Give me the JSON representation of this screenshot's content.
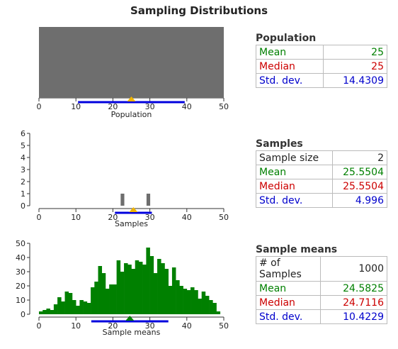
{
  "title": "Sampling Distributions",
  "colors": {
    "population_fill": "#6e6e6e",
    "samples_bar": "#6e6e6e",
    "means_bar": "#008000",
    "mean_color": "#008000",
    "median_color": "#cc0000",
    "sd_color": "#0000cc",
    "mean_marker_pop": "#f0b400",
    "mean_marker_means": "#008000"
  },
  "population": {
    "heading": "Population",
    "rows": [
      {
        "label": "Mean",
        "value": "25"
      },
      {
        "label": "Median",
        "value": "25"
      },
      {
        "label": "Std. dev.",
        "value": "14.4309"
      }
    ],
    "chart": {
      "xlabel": "Population",
      "xticks": [
        "0",
        "10",
        "20",
        "30",
        "40",
        "50"
      ],
      "xlim": [
        0,
        50
      ],
      "distribution": "uniform",
      "range": [
        0,
        50
      ],
      "mean": 25,
      "sd": 14.4309
    }
  },
  "samples": {
    "heading": "Samples",
    "rows": [
      {
        "label": "Sample size",
        "value": "2"
      },
      {
        "label": "Mean",
        "value": "25.5504"
      },
      {
        "label": "Median",
        "value": "25.5504"
      },
      {
        "label": "Std. dev.",
        "value": "4.996"
      }
    ],
    "chart": {
      "xlabel": "Samples",
      "xticks": [
        "0",
        "10",
        "20",
        "30",
        "40",
        "50"
      ],
      "yticks": [
        "0",
        "1",
        "2",
        "3",
        "4",
        "5",
        "6"
      ],
      "xlim": [
        0,
        50
      ],
      "ylim": [
        0,
        6
      ],
      "x": [
        22,
        29
      ],
      "y": [
        1,
        1
      ],
      "mean": 25.5504,
      "sd": 4.996
    }
  },
  "means": {
    "heading": "Sample means",
    "rows": [
      {
        "label": "# of Samples",
        "value": "1000"
      },
      {
        "label": "Mean",
        "value": "24.5825"
      },
      {
        "label": "Median",
        "value": "24.7116"
      },
      {
        "label": "Std. dev.",
        "value": "10.4229"
      }
    ],
    "chart": {
      "xlabel": "Sample means",
      "xticks": [
        "0",
        "10",
        "20",
        "30",
        "40",
        "50"
      ],
      "yticks": [
        "0",
        "10",
        "20",
        "30",
        "40",
        "50"
      ],
      "xlim": [
        0,
        50
      ],
      "ylim": [
        0,
        50
      ],
      "mean": 24.5825,
      "sd": 10.4229
    }
  },
  "chart_data": [
    {
      "type": "bar",
      "xlabel": "Sample means",
      "xlim": [
        0,
        50
      ],
      "ylim": [
        0,
        50
      ],
      "bin_width": 1,
      "x": [
        0,
        1,
        2,
        3,
        4,
        5,
        6,
        7,
        8,
        9,
        10,
        11,
        12,
        13,
        14,
        15,
        16,
        17,
        18,
        19,
        20,
        21,
        22,
        23,
        24,
        25,
        26,
        27,
        28,
        29,
        30,
        31,
        32,
        33,
        34,
        35,
        36,
        37,
        38,
        39,
        40,
        41,
        42,
        43,
        44,
        45,
        46,
        47,
        48,
        49
      ],
      "values": [
        2,
        3,
        4,
        3,
        7,
        12,
        9,
        16,
        15,
        10,
        6,
        10,
        9,
        8,
        19,
        23,
        34,
        29,
        18,
        21,
        21,
        38,
        30,
        36,
        35,
        32,
        38,
        37,
        35,
        47,
        41,
        29,
        39,
        36,
        32,
        20,
        33,
        24,
        20,
        18,
        17,
        19,
        17,
        11,
        16,
        13,
        10,
        8,
        2,
        0
      ]
    }
  ]
}
